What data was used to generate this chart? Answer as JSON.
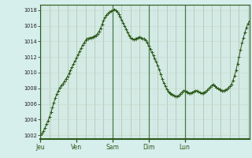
{
  "bg_color": "#d6eeec",
  "plot_bg_color": "#d6eeec",
  "line_color": "#2d5a1b",
  "marker_color": "#2d5a1b",
  "grid_color_v_minor": "#c8d8c8",
  "grid_color_v_major": "#a0b8a0",
  "grid_color_h": "#c8d8c8",
  "vline_color": "#4a7a4a",
  "ylim": [
    1001.5,
    1018.7
  ],
  "yticks": [
    1002,
    1004,
    1006,
    1008,
    1010,
    1012,
    1014,
    1016,
    1018
  ],
  "xtick_labels": [
    "Jeu",
    "Ven",
    "Sam",
    "Dim",
    "Lun"
  ],
  "xtick_positions": [
    0,
    24,
    48,
    72,
    96
  ],
  "vline_positions": [
    0,
    48,
    72,
    96
  ],
  "pressure_data": [
    1002.0,
    1002.2,
    1002.5,
    1002.9,
    1003.4,
    1003.8,
    1004.3,
    1004.9,
    1005.5,
    1006.2,
    1006.8,
    1007.3,
    1007.7,
    1008.1,
    1008.4,
    1008.6,
    1008.9,
    1009.2,
    1009.5,
    1009.9,
    1010.3,
    1010.7,
    1011.1,
    1011.5,
    1011.9,
    1012.3,
    1012.7,
    1013.1,
    1013.5,
    1013.8,
    1014.1,
    1014.3,
    1014.4,
    1014.5,
    1014.5,
    1014.6,
    1014.7,
    1014.8,
    1015.0,
    1015.3,
    1015.7,
    1016.2,
    1016.7,
    1017.1,
    1017.4,
    1017.6,
    1017.8,
    1017.9,
    1018.0,
    1018.1,
    1018.0,
    1017.8,
    1017.5,
    1017.2,
    1016.8,
    1016.4,
    1016.0,
    1015.6,
    1015.2,
    1014.8,
    1014.5,
    1014.3,
    1014.2,
    1014.3,
    1014.4,
    1014.5,
    1014.6,
    1014.5,
    1014.4,
    1014.3,
    1014.1,
    1013.8,
    1013.4,
    1013.0,
    1012.6,
    1012.2,
    1011.8,
    1011.4,
    1010.9,
    1010.4,
    1009.8,
    1009.2,
    1008.7,
    1008.3,
    1007.9,
    1007.6,
    1007.4,
    1007.3,
    1007.2,
    1007.1,
    1007.0,
    1007.0,
    1007.1,
    1007.3,
    1007.5,
    1007.7,
    1007.7,
    1007.6,
    1007.5,
    1007.4,
    1007.4,
    1007.5,
    1007.6,
    1007.7,
    1007.7,
    1007.6,
    1007.5,
    1007.4,
    1007.4,
    1007.5,
    1007.6,
    1007.8,
    1008.0,
    1008.2,
    1008.4,
    1008.5,
    1008.3,
    1008.1,
    1008.0,
    1007.9,
    1007.8,
    1007.7,
    1007.7,
    1007.8,
    1007.9,
    1008.1,
    1008.3,
    1008.5,
    1009.0,
    1009.6,
    1010.3,
    1011.1,
    1012.0,
    1012.9,
    1013.8,
    1014.5,
    1015.2,
    1015.8,
    1016.3,
    1016.6
  ]
}
